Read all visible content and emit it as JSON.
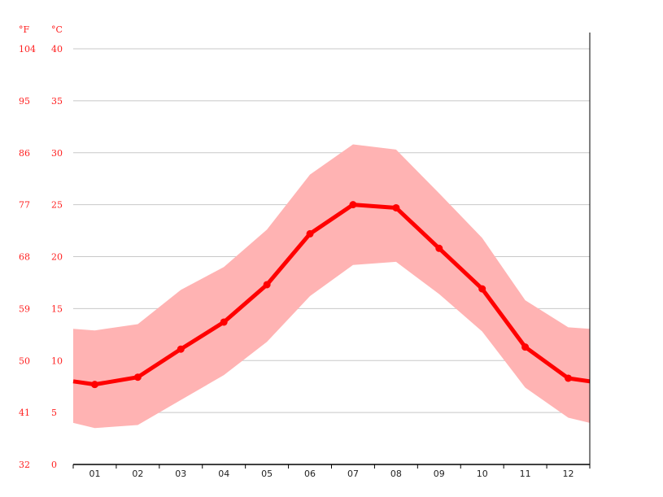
{
  "chart_data": {
    "type": "line",
    "title": "",
    "xlabel": "",
    "ylabel": "",
    "unit_f": "°F",
    "unit_c": "°C",
    "ylim": [
      0,
      40
    ],
    "y_ticks_c": [
      "0",
      "5",
      "10",
      "15",
      "20",
      "25",
      "30",
      "35",
      "40"
    ],
    "y_ticks_f": [
      "32",
      "41",
      "50",
      "59",
      "68",
      "77",
      "86",
      "95",
      "104"
    ],
    "categories": [
      "01",
      "02",
      "03",
      "04",
      "05",
      "06",
      "07",
      "08",
      "09",
      "10",
      "11",
      "12"
    ],
    "grid": true,
    "series": [
      {
        "role": "mean",
        "color": "#ff0000",
        "values": [
          7.7,
          8.4,
          11.1,
          13.7,
          17.3,
          22.2,
          25.0,
          24.7,
          20.8,
          16.9,
          11.3,
          8.3
        ]
      },
      {
        "role": "max",
        "color": "#ffb3b3",
        "values": [
          12.9,
          13.5,
          16.8,
          19.0,
          22.6,
          27.9,
          30.8,
          30.3,
          26.1,
          21.8,
          15.8,
          13.2
        ]
      },
      {
        "role": "min",
        "color": "#ffb3b3",
        "values": [
          3.5,
          3.8,
          6.2,
          8.6,
          11.8,
          16.2,
          19.2,
          19.5,
          16.4,
          12.8,
          7.4,
          4.5
        ]
      }
    ]
  }
}
